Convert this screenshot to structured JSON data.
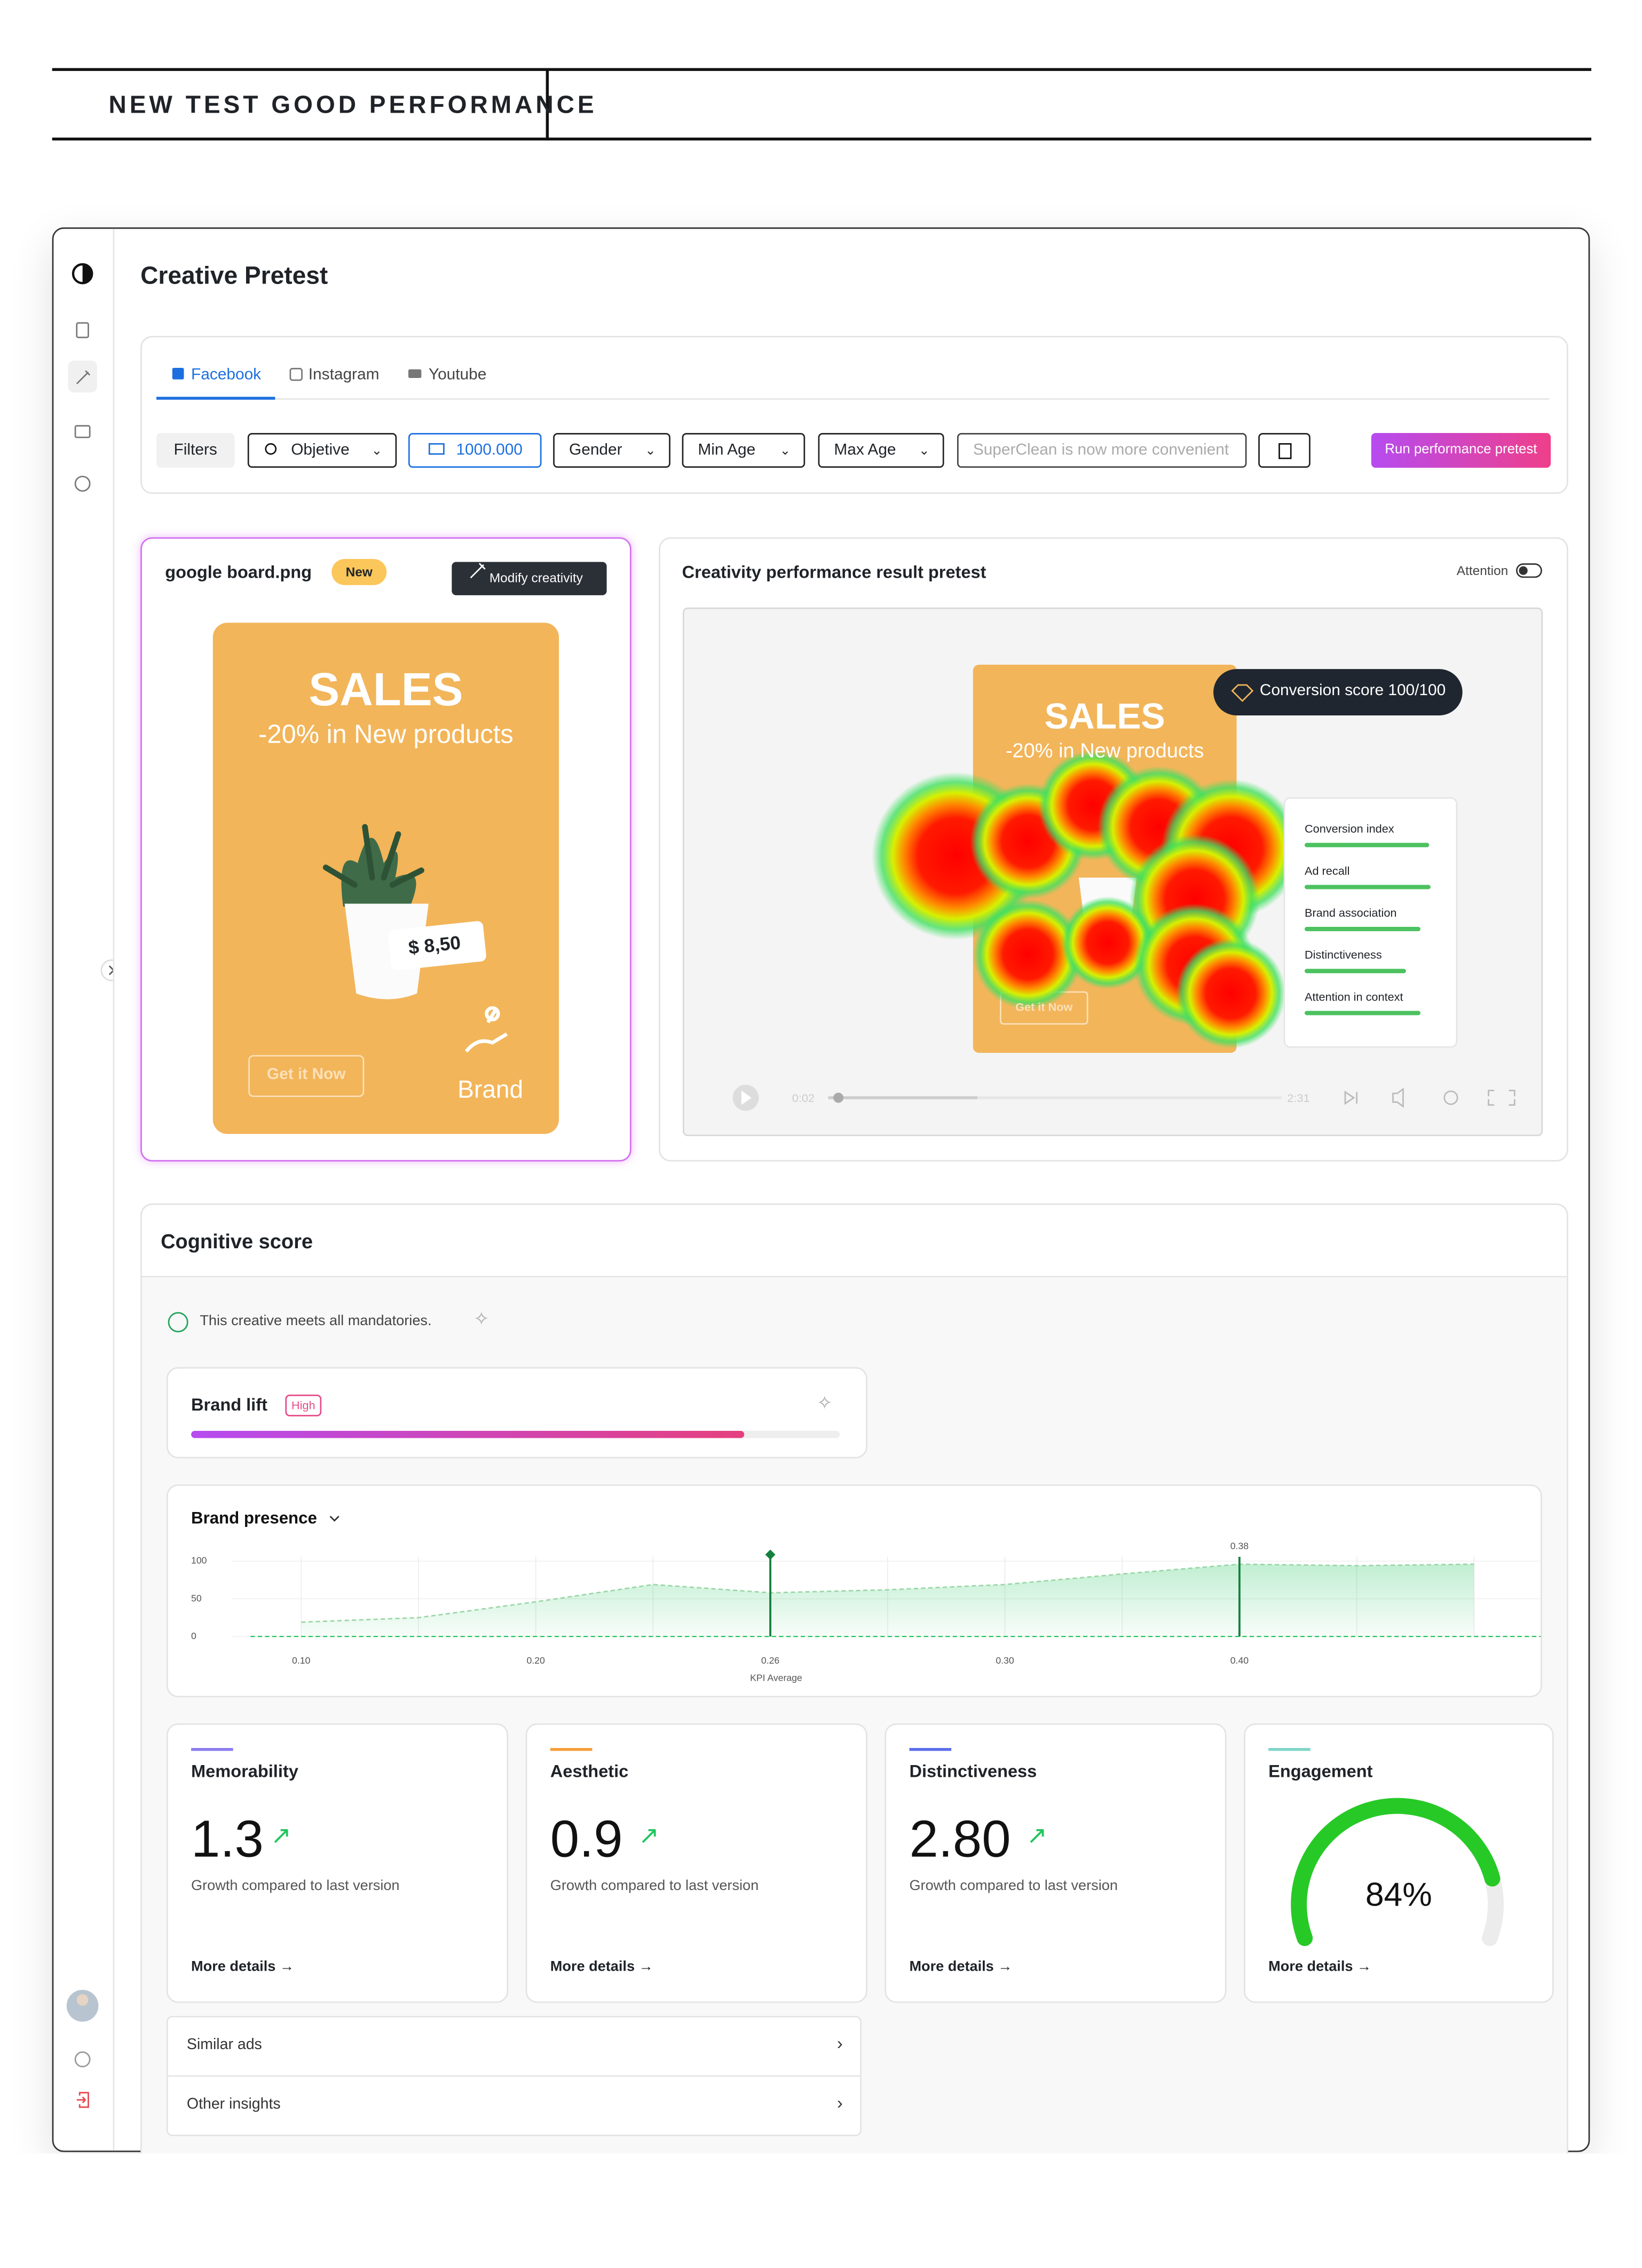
{
  "header": {
    "title": "NEW TEST GOOD PERFORMANCE"
  },
  "page": {
    "title": "Creative Pretest"
  },
  "tabs": [
    "Facebook",
    "Instagram",
    "Youtube"
  ],
  "filters": {
    "label": "Filters",
    "items": [
      "Objetive",
      "1000.000",
      "Gender",
      "Min Age",
      "Max Age"
    ],
    "search_placeholder": "SuperClean is now more convenient",
    "run_button": "Run performance pretest"
  },
  "creative": {
    "file": "google board.png",
    "badge": "New",
    "modify": "Modify creativity",
    "ad": {
      "headline": "SALES",
      "subline": "-20% in New products",
      "price": "$ 8,50",
      "cta": "Get it Now",
      "brand": "Brand"
    }
  },
  "result": {
    "title": "Creativity performance result pretest",
    "toggle": "Attention",
    "conversion": "Conversion score 100/100",
    "metrics": [
      "Conversion index",
      "Ad recall",
      "Brand association",
      "Distinctiveness",
      "Attention in context"
    ],
    "time_start": "0:02",
    "time_end": "2:31"
  },
  "cognitive": {
    "title": "Cognitive score",
    "mandatory": "This creative meets all mandatories.",
    "brand_lift": {
      "label": "Brand lift",
      "badge": "High"
    },
    "cards": [
      {
        "title": "Memorability",
        "value": "1.3",
        "note": "Growth compared to last version",
        "link": "More details"
      },
      {
        "title": "Aesthetic",
        "value": "0.9",
        "note": "Growth compared to last version",
        "link": "More details"
      },
      {
        "title": "Distinctiveness",
        "value": "2.80",
        "note": "Growth compared to last version",
        "link": "More details"
      }
    ],
    "engagement": {
      "title": "Engagement",
      "value": 84,
      "value_label": "84%",
      "link": "More details"
    },
    "lists": [
      "Similar ads",
      "Other insights"
    ]
  },
  "chart_data": {
    "type": "area",
    "title": "Brand presence",
    "x_label": "KPI Average",
    "categories": [
      "0.10",
      null,
      "0.20",
      null,
      "0.26",
      null,
      "0.30",
      null,
      "0.40",
      null,
      null
    ],
    "values": [
      19,
      25,
      46,
      69,
      58,
      62,
      69,
      83,
      96,
      94,
      96
    ],
    "color": "#22c55e",
    "ylim": [
      0,
      100
    ],
    "yticks": [
      0,
      50,
      100
    ],
    "annotation": "0.38",
    "grid": true
  }
}
